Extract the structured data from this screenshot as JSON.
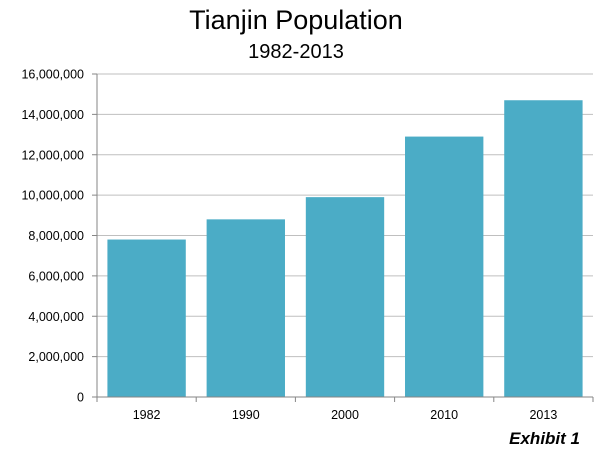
{
  "chart_data": {
    "type": "bar",
    "title": "Tianjin Population",
    "subtitle": "1982-2013",
    "categories": [
      "1982",
      "1990",
      "2000",
      "2010",
      "2013"
    ],
    "values": [
      7800000,
      8800000,
      9900000,
      12900000,
      14700000
    ],
    "ylim": [
      0,
      16000000
    ],
    "yticks": [
      "0",
      "2,000,000",
      "4,000,000",
      "6,000,000",
      "8,000,000",
      "10,000,000",
      "12,000,000",
      "14,000,000",
      "16,000,000"
    ],
    "ytick_values": [
      0,
      2000000,
      4000000,
      6000000,
      8000000,
      10000000,
      12000000,
      14000000,
      16000000
    ],
    "grid": true,
    "legend": "none",
    "bar_color": "#4bacc6",
    "grid_color": "#bfbfbf"
  },
  "annotation": "Exhibit 1"
}
